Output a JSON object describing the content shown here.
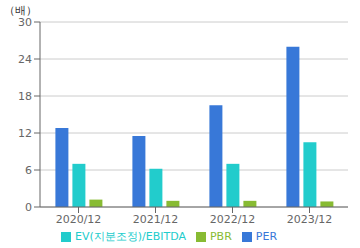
{
  "chart_data": {
    "type": "bar",
    "ylabel": "（배）",
    "categories": [
      "2020/12",
      "2021/12",
      "2022/12",
      "2023/12"
    ],
    "series": [
      {
        "name": "PER",
        "color": "#3878d8",
        "values": [
          12.8,
          11.5,
          16.5,
          26.0
        ]
      },
      {
        "name": "EV(지분조정)/EBITDA",
        "color": "#22cccc",
        "values": [
          7.0,
          6.2,
          7.0,
          10.5
        ]
      },
      {
        "name": "PBR",
        "color": "#88bb33",
        "values": [
          1.2,
          1.0,
          1.0,
          0.9
        ]
      }
    ],
    "ylim": [
      0,
      30
    ],
    "yticks": [
      0,
      6,
      12,
      18,
      24,
      30
    ],
    "grid": true,
    "legend": "bottom"
  }
}
